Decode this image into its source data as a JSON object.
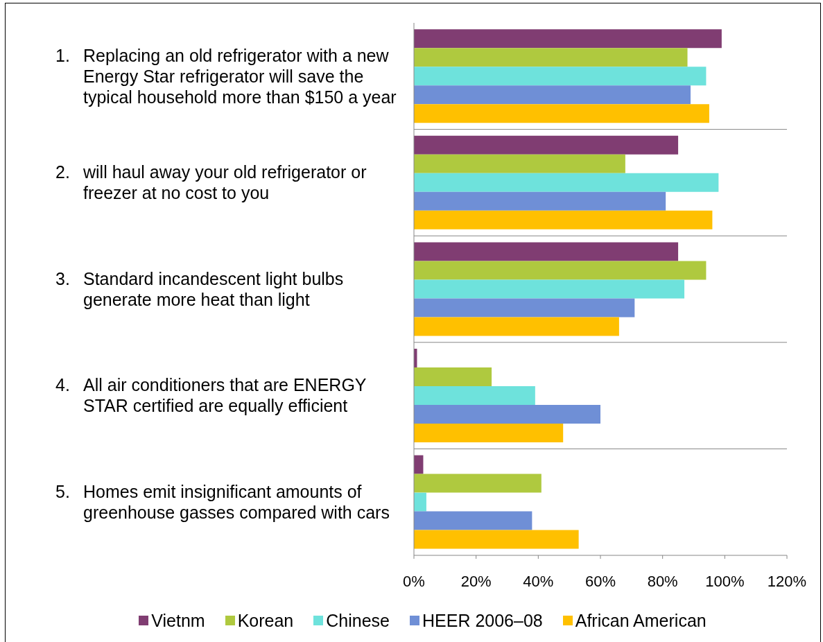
{
  "chart_data": {
    "type": "bar",
    "orientation": "horizontal",
    "categories": [
      "1. Replacing an old refrigerator with a new Energy Star refrigerator will save the typical household more than $150 a year",
      "2. will haul away your old refrigerator or freezer at no cost to you",
      "3. Standard incandescent light bulbs generate more heat than light",
      "4. All air conditioners that are ENERGY STAR certified are equally efficient",
      "5. Homes emit insignificant amounts of greenhouse gasses compared with cars"
    ],
    "series": [
      {
        "name": "Vietnm",
        "color": "#803d72",
        "values": [
          99,
          85,
          85,
          1,
          3
        ]
      },
      {
        "name": "Korean",
        "color": "#afc93f",
        "values": [
          88,
          68,
          94,
          25,
          41
        ]
      },
      {
        "name": "Chinese",
        "color": "#6ee2dc",
        "values": [
          94,
          98,
          87,
          39,
          4
        ]
      },
      {
        "name": "HEER 2006–08",
        "color": "#6f8fd6",
        "values": [
          89,
          81,
          71,
          60,
          38
        ]
      },
      {
        "name": "African American",
        "color": "#ffc000",
        "values": [
          95,
          96,
          66,
          48,
          53
        ]
      }
    ],
    "xlim": [
      0,
      120
    ],
    "xticks": [
      {
        "value": 0,
        "label": "0%"
      },
      {
        "value": 20,
        "label": "20%"
      },
      {
        "value": 40,
        "label": "40%"
      },
      {
        "value": 60,
        "label": "60%"
      },
      {
        "value": 80,
        "label": "80%"
      },
      {
        "value": 100,
        "label": "100%"
      },
      {
        "value": 120,
        "label": "120%"
      }
    ],
    "grid": "y",
    "legend": "bottom"
  }
}
